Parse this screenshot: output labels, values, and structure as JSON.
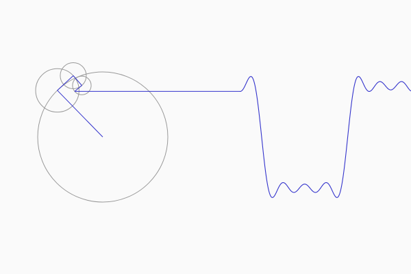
{
  "visualization": {
    "waveform": "square",
    "epicycle_terms": [
      {
        "harmonic": 1,
        "relative_radius": 1.0
      },
      {
        "harmonic": 3,
        "relative_radius": 0.3333
      },
      {
        "harmonic": 5,
        "relative_radius": 0.2
      },
      {
        "harmonic": 7,
        "relative_radius": 0.1429
      }
    ],
    "term_count": 7,
    "phase": 3.94,
    "colors": {
      "background": "#fafafa",
      "circles": "#999999",
      "arms": "#3333cc",
      "connector": "#3333cc",
      "wave": "#3333cc"
    }
  }
}
